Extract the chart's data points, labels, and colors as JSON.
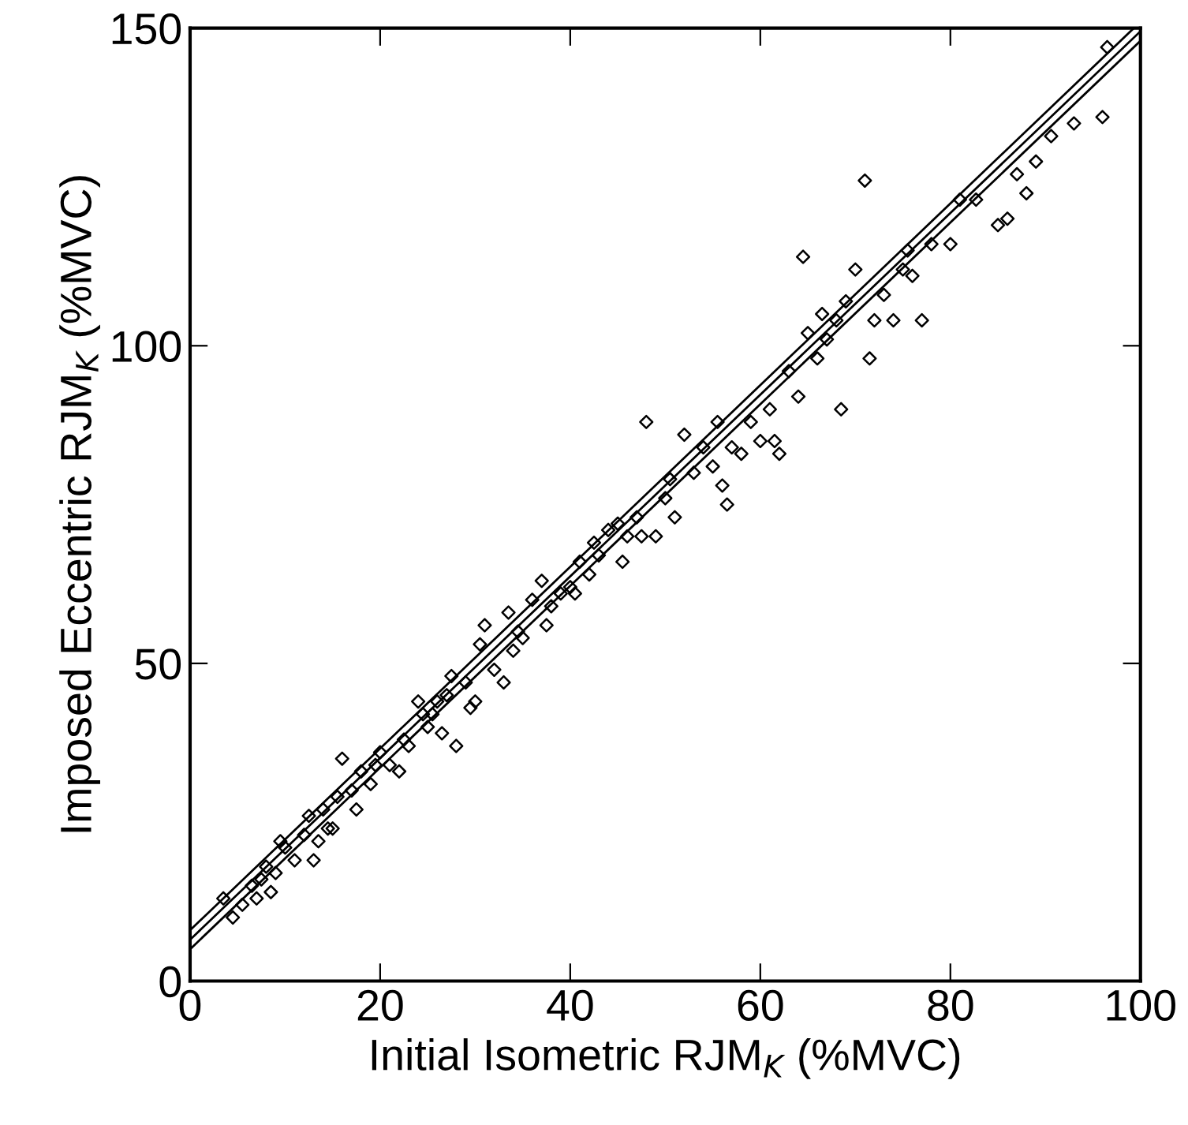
{
  "chart_data": {
    "type": "scatter",
    "xlabel": "Initial Isometric RJM$_{K}$ (%MVC)",
    "ylabel": "Imposed Eccentric RJM$_{K}$ (%MVC)",
    "xlim": [
      0,
      100
    ],
    "ylim": [
      0,
      150
    ],
    "xticks": [
      0,
      20,
      40,
      60,
      80,
      100
    ],
    "yticks": [
      0,
      50,
      100,
      150
    ],
    "grid": false,
    "series": [
      {
        "marker": "diamond",
        "color": "#000000",
        "x": [
          3.5,
          4.5,
          5.5,
          6.5,
          7,
          7.5,
          8,
          8.5,
          9,
          9.5,
          10,
          11,
          12,
          12.5,
          13,
          13.5,
          14,
          14.5,
          15,
          15.5,
          16,
          17,
          17.5,
          18,
          19,
          19.5,
          20,
          21,
          22,
          22.5,
          23,
          24,
          24.5,
          25,
          25.5,
          26,
          26.5,
          27,
          27.5,
          28,
          29,
          29.5,
          30,
          30.5,
          31,
          32,
          33,
          33.5,
          34,
          34.5,
          35,
          36,
          37,
          37.5,
          38,
          39,
          40,
          40.5,
          41,
          42,
          42.5,
          43,
          44,
          45,
          45.5,
          46,
          47,
          47.5,
          48,
          49,
          50,
          50.5,
          51,
          52,
          53,
          54,
          55,
          55.5,
          56,
          56.5,
          57,
          58,
          59,
          60,
          61,
          61.5,
          62,
          63,
          64,
          64.5,
          65,
          66,
          66.5,
          67,
          68,
          68.5,
          69,
          70,
          71,
          71.5,
          72,
          73,
          74,
          75,
          75.5,
          76,
          77,
          78,
          80,
          81,
          82.7,
          85,
          86,
          87,
          88,
          89,
          90.6,
          93,
          96,
          96.5
        ],
        "values": [
          13,
          10,
          12,
          15,
          13,
          16,
          18,
          14,
          17,
          22,
          21,
          19,
          23,
          26,
          19,
          22,
          27,
          24,
          24,
          29,
          35,
          30,
          27,
          33,
          31,
          34,
          36,
          34,
          33,
          38,
          37,
          44,
          42,
          40,
          42,
          44,
          39,
          45,
          48,
          37,
          47,
          43,
          44,
          53,
          56,
          49,
          47,
          58,
          52,
          55,
          54,
          60,
          63,
          56,
          59,
          61,
          62,
          61,
          66,
          64,
          69,
          67,
          71,
          72,
          66,
          70,
          73,
          70,
          88,
          70,
          76,
          79,
          73,
          86,
          80,
          84,
          81,
          88,
          78,
          75,
          84,
          83,
          88,
          85,
          90,
          85,
          83,
          96,
          92,
          114,
          102,
          98,
          105,
          101,
          104,
          90,
          107,
          112,
          126,
          98,
          104,
          108,
          104,
          112,
          115,
          111,
          104,
          116,
          116,
          123,
          123,
          119,
          120,
          127,
          124,
          129,
          133,
          135,
          136,
          147
        ]
      },
      {
        "type": "line",
        "marker": "none",
        "color": "#000000",
        "x": [
          0,
          99.3
        ],
        "values": [
          8,
          150
        ]
      },
      {
        "type": "line",
        "marker": "none",
        "color": "#000000",
        "x": [
          0,
          100
        ],
        "values": [
          6.5,
          149.5
        ]
      },
      {
        "type": "line",
        "marker": "none",
        "color": "#000000",
        "x": [
          0,
          100
        ],
        "values": [
          5,
          148
        ]
      }
    ]
  }
}
